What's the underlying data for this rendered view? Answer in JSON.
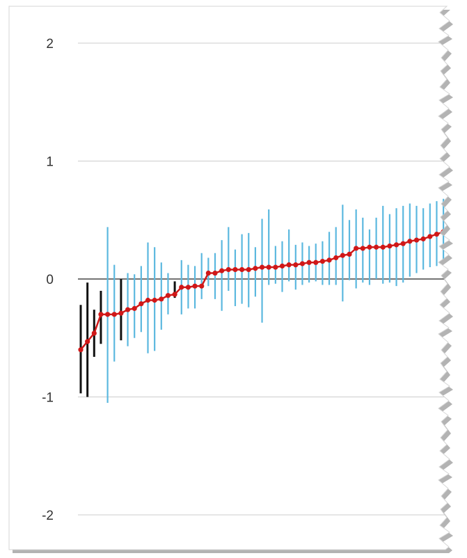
{
  "colors": {
    "background": "#ffffff",
    "gridline": "#cccccc",
    "zero_line": "#222222",
    "error_bar_black": "#111111",
    "error_bar_blue": "#5bb8df",
    "point_line": "#d01818",
    "torn_edge_shadow": "#9a9a9a"
  },
  "chart_data": {
    "type": "line",
    "title": "",
    "xlabel": "",
    "ylabel": "",
    "ylim": [
      -2.2,
      2.2
    ],
    "y_ticks": [
      {
        "value": 2,
        "label": "2"
      },
      {
        "value": 1,
        "label": "1"
      },
      {
        "value": 0,
        "label": "0"
      },
      {
        "value": -1,
        "label": "-1"
      },
      {
        "value": -2,
        "label": "-2"
      }
    ],
    "grid": true,
    "legend": "none",
    "x": [
      1,
      2,
      3,
      4,
      5,
      6,
      7,
      8,
      9,
      10,
      11,
      12,
      13,
      14,
      15,
      16,
      17,
      18,
      19,
      20,
      21,
      22,
      23,
      24,
      25,
      26,
      27,
      28,
      29,
      30,
      31,
      32,
      33,
      34,
      35,
      36,
      37,
      38,
      39,
      40,
      41,
      42,
      43,
      44,
      45,
      46,
      47,
      48,
      49,
      50,
      51,
      52,
      53,
      54,
      55,
      56
    ],
    "series": [
      {
        "values": [
          -0.6,
          -0.53,
          -0.46,
          -0.3,
          -0.3,
          -0.3,
          -0.29,
          -0.26,
          -0.25,
          -0.21,
          -0.18,
          -0.18,
          -0.17,
          -0.14,
          -0.13,
          -0.07,
          -0.07,
          -0.06,
          -0.06,
          0.05,
          0.05,
          0.07,
          0.08,
          0.08,
          0.08,
          0.08,
          0.09,
          0.1,
          0.1,
          0.1,
          0.11,
          0.12,
          0.12,
          0.13,
          0.14,
          0.14,
          0.15,
          0.16,
          0.18,
          0.2,
          0.21,
          0.26,
          0.26,
          0.27,
          0.27,
          0.27,
          0.28,
          0.29,
          0.3,
          0.32,
          0.33,
          0.34,
          0.36,
          0.38,
          0.4,
          0.42
        ],
        "lower": [
          -0.97,
          -1.0,
          -0.66,
          -0.55,
          -1.05,
          -0.7,
          -0.52,
          -0.57,
          -0.5,
          -0.45,
          -0.63,
          -0.61,
          -0.43,
          -0.3,
          -0.16,
          -0.3,
          -0.25,
          -0.25,
          -0.17,
          -0.06,
          -0.17,
          -0.27,
          -0.1,
          -0.23,
          -0.21,
          -0.24,
          -0.15,
          -0.37,
          -0.05,
          -0.04,
          -0.11,
          -0.02,
          -0.09,
          -0.05,
          -0.03,
          -0.02,
          -0.05,
          -0.05,
          -0.05,
          -0.19,
          -0.01,
          -0.08,
          -0.03,
          -0.05,
          0.0,
          -0.04,
          -0.03,
          -0.06,
          -0.03,
          0.02,
          0.05,
          0.08,
          0.1,
          0.11,
          0.13,
          0.15
        ],
        "upper": [
          -0.22,
          -0.03,
          -0.26,
          -0.1,
          0.44,
          0.12,
          0.0,
          0.05,
          0.04,
          0.11,
          0.31,
          0.27,
          0.14,
          0.05,
          -0.02,
          0.16,
          0.12,
          0.11,
          0.22,
          0.18,
          0.22,
          0.33,
          0.44,
          0.25,
          0.38,
          0.39,
          0.27,
          0.51,
          0.59,
          0.28,
          0.32,
          0.42,
          0.29,
          0.31,
          0.28,
          0.3,
          0.32,
          0.4,
          0.44,
          0.63,
          0.5,
          0.59,
          0.52,
          0.42,
          0.52,
          0.62,
          0.55,
          0.6,
          0.62,
          0.64,
          0.62,
          0.6,
          0.64,
          0.66,
          0.68,
          0.7
        ],
        "bar_colors": [
          "black",
          "black",
          "black",
          "black",
          "blue",
          "blue",
          "black",
          "blue",
          "blue",
          "blue",
          "blue",
          "blue",
          "blue",
          "blue",
          "black",
          "blue",
          "blue",
          "blue",
          "blue",
          "blue",
          "blue",
          "blue",
          "blue",
          "blue",
          "blue",
          "blue",
          "blue",
          "blue",
          "blue",
          "blue",
          "blue",
          "blue",
          "blue",
          "blue",
          "blue",
          "blue",
          "blue",
          "blue",
          "blue",
          "blue",
          "blue",
          "blue",
          "blue",
          "blue",
          "blue",
          "blue",
          "blue",
          "blue",
          "blue",
          "blue",
          "blue",
          "blue",
          "blue",
          "blue",
          "blue",
          "blue"
        ]
      }
    ]
  }
}
